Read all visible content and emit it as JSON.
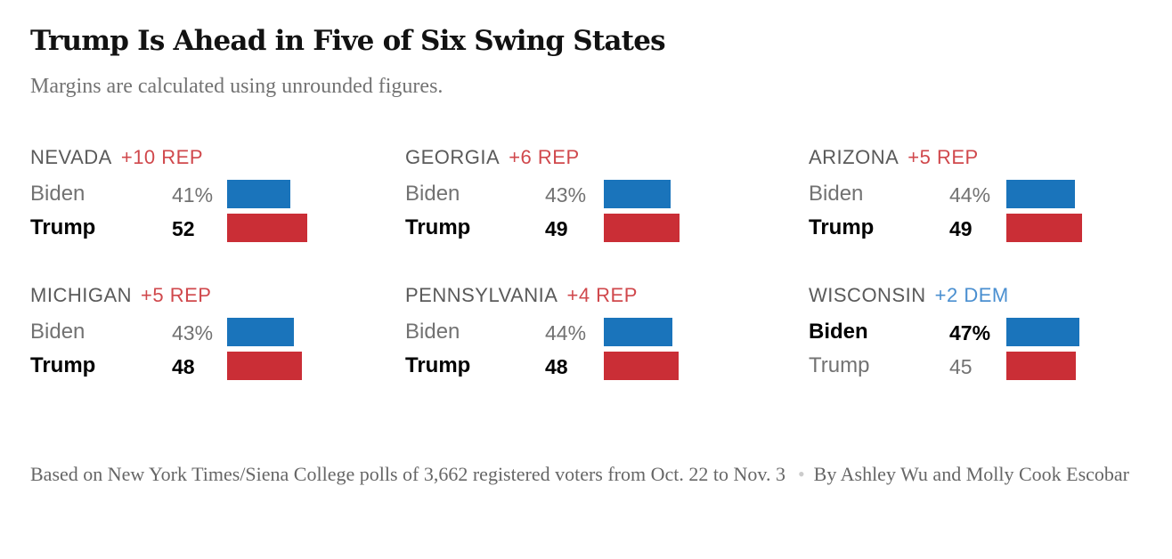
{
  "title": "Trump Is Ahead in Five of Six Swing States",
  "subtitle": "Margins are calculated using unrounded figures.",
  "footer": {
    "source": "Based on New York Times/Siena College polls of 3,662 registered voters from Oct. 22 to Nov. 3",
    "separator": "•",
    "byline": "By Ashley Wu and Molly Cook Escobar"
  },
  "colors": {
    "dem": "#1a74bb",
    "rep": "#ca2e36",
    "rep_margin": "#d0484c",
    "dem_margin": "#4a8fd0"
  },
  "chart_data": {
    "type": "bar",
    "title": "Trump Is Ahead in Five of Six Swing States",
    "subtitle": "Margins are calculated using unrounded figures.",
    "unit": "%",
    "series": [
      {
        "name": "Biden"
      },
      {
        "name": "Trump"
      }
    ],
    "states": [
      {
        "name": "NEVADA",
        "margin": "+10 REP",
        "lean": "rep",
        "winner": "Trump",
        "rows": [
          {
            "candidate": "Biden",
            "value": 41,
            "label": "41%",
            "party": "dem"
          },
          {
            "candidate": "Trump",
            "value": 52,
            "label": "52",
            "party": "rep"
          }
        ]
      },
      {
        "name": "GEORGIA",
        "margin": "+6 REP",
        "lean": "rep",
        "winner": "Trump",
        "rows": [
          {
            "candidate": "Biden",
            "value": 43,
            "label": "43%",
            "party": "dem"
          },
          {
            "candidate": "Trump",
            "value": 49,
            "label": "49",
            "party": "rep"
          }
        ]
      },
      {
        "name": "ARIZONA",
        "margin": "+5 REP",
        "lean": "rep",
        "winner": "Trump",
        "rows": [
          {
            "candidate": "Biden",
            "value": 44,
            "label": "44%",
            "party": "dem"
          },
          {
            "candidate": "Trump",
            "value": 49,
            "label": "49",
            "party": "rep"
          }
        ]
      },
      {
        "name": "MICHIGAN",
        "margin": "+5 REP",
        "lean": "rep",
        "winner": "Trump",
        "rows": [
          {
            "candidate": "Biden",
            "value": 43,
            "label": "43%",
            "party": "dem"
          },
          {
            "candidate": "Trump",
            "value": 48,
            "label": "48",
            "party": "rep"
          }
        ]
      },
      {
        "name": "PENNSYLVANIA",
        "margin": "+4 REP",
        "lean": "rep",
        "winner": "Trump",
        "rows": [
          {
            "candidate": "Biden",
            "value": 44,
            "label": "44%",
            "party": "dem"
          },
          {
            "candidate": "Trump",
            "value": 48,
            "label": "48",
            "party": "rep"
          }
        ]
      },
      {
        "name": "WISCONSIN",
        "margin": "+2 DEM",
        "lean": "dem",
        "winner": "Biden",
        "rows": [
          {
            "candidate": "Biden",
            "value": 47,
            "label": "47%",
            "party": "dem"
          },
          {
            "candidate": "Trump",
            "value": 45,
            "label": "45",
            "party": "rep"
          }
        ]
      }
    ]
  }
}
